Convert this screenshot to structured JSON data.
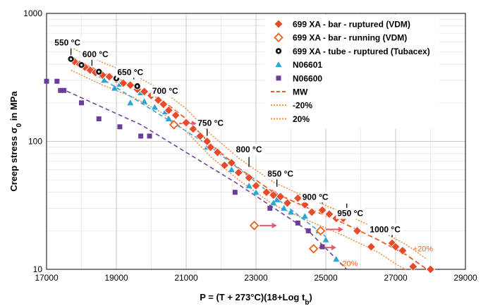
{
  "colors": {
    "bar_ruptured": "#e84a2a",
    "bar_running": "#e8601c",
    "tube": "#111111",
    "n06601": "#2aa5d8",
    "n06600": "#6a3d9a",
    "mw_line": "#e8601c",
    "band_line": "#f07a26",
    "arrow": "#e85a6a",
    "marker_stroke": "#ffffff"
  },
  "chart_data": {
    "type": "scatter",
    "xlabel_main": "P = (T + 273°C)(18+Log t",
    "xlabel_sub": "b",
    "xlabel_end": ")",
    "ylabel_main": "Creep stress σ",
    "ylabel_sub": "0",
    "ylabel_end": " in MPa",
    "xlim": [
      17000,
      29000
    ],
    "ylim": [
      10,
      1000
    ],
    "y_scale": "log",
    "grid": true,
    "legend_position": "top-right",
    "x_ticks": [
      {
        "value": 17000,
        "label": "17000"
      },
      {
        "value": 19000,
        "label": "19000"
      },
      {
        "value": 21000,
        "label": "21000"
      },
      {
        "value": 23000,
        "label": "23000"
      },
      {
        "value": 25000,
        "label": "25000"
      },
      {
        "value": 27000,
        "label": "27000"
      },
      {
        "value": 29000,
        "label": "29000"
      }
    ],
    "y_ticks": [
      {
        "value": 10,
        "label": "10"
      },
      {
        "value": 100,
        "label": "100"
      },
      {
        "value": 1000,
        "label": "1000"
      }
    ],
    "legend": [
      {
        "label": "699 XA - bar - ruptured (VDM)",
        "marker": "diamond"
      },
      {
        "label": "699 XA - bar - running (VDM)",
        "marker": "diamond-open"
      },
      {
        "label": "699 XA - tube - ruptured (Tubacex)",
        "marker": "circle-dot"
      },
      {
        "label": "N06601",
        "marker": "triangle"
      },
      {
        "label": "N06600",
        "marker": "square"
      },
      {
        "label": "MW",
        "marker": "dash"
      },
      {
        "label": "-20%",
        "marker": "dot"
      },
      {
        "label": "20%",
        "marker": "dot"
      }
    ],
    "series": [
      {
        "name": "699 XA - bar - ruptured (VDM)",
        "marker": "diamond",
        "points": [
          [
            17700,
            440
          ],
          [
            17800,
            420
          ],
          [
            17950,
            400
          ],
          [
            18100,
            380
          ],
          [
            18250,
            360
          ],
          [
            18400,
            345
          ],
          [
            18600,
            330
          ],
          [
            18800,
            320
          ],
          [
            19000,
            305
          ],
          [
            19200,
            285
          ],
          [
            19400,
            275
          ],
          [
            19600,
            255
          ],
          [
            19800,
            245
          ],
          [
            20000,
            228
          ],
          [
            20200,
            210
          ],
          [
            20350,
            195
          ],
          [
            20500,
            175
          ],
          [
            20700,
            160
          ],
          [
            21000,
            140
          ],
          [
            21200,
            125
          ],
          [
            21400,
            110
          ],
          [
            21600,
            100
          ],
          [
            21700,
            90
          ],
          [
            21900,
            82
          ],
          [
            22100,
            65
          ],
          [
            22300,
            68
          ],
          [
            22500,
            57
          ],
          [
            22800,
            52
          ],
          [
            23000,
            45
          ],
          [
            23300,
            40
          ],
          [
            23500,
            38
          ],
          [
            23700,
            37
          ],
          [
            23900,
            33
          ],
          [
            24200,
            36
          ],
          [
            24400,
            32
          ],
          [
            24600,
            28
          ],
          [
            24900,
            29
          ],
          [
            25100,
            27
          ],
          [
            25300,
            25
          ],
          [
            25500,
            25
          ],
          [
            25900,
            20
          ],
          [
            26300,
            15
          ],
          [
            26600,
            20
          ],
          [
            26900,
            16
          ],
          [
            27000,
            15
          ],
          [
            27200,
            14
          ],
          [
            27500,
            10.5
          ],
          [
            28000,
            10
          ]
        ]
      },
      {
        "name": "699 XA - bar - running (VDM)",
        "marker": "diamond-open",
        "points": [
          [
            20650,
            135
          ],
          [
            22950,
            22
          ],
          [
            24650,
            14.5
          ],
          [
            24850,
            20
          ]
        ]
      },
      {
        "name": "699 XA - tube - ruptured (Tubacex)",
        "marker": "circle-dot",
        "points": [
          [
            17700,
            440
          ],
          [
            18000,
            395
          ],
          [
            18500,
            350
          ],
          [
            19000,
            310
          ],
          [
            19600,
            270
          ]
        ]
      },
      {
        "name": "N06601",
        "marker": "triangle",
        "points": [
          [
            18650,
            300
          ],
          [
            18950,
            260
          ],
          [
            19100,
            280
          ],
          [
            19400,
            200
          ],
          [
            19700,
            240
          ],
          [
            19800,
            205
          ],
          [
            20100,
            185
          ],
          [
            20400,
            170
          ],
          [
            20500,
            150
          ],
          [
            21600,
            90
          ],
          [
            22300,
            60
          ],
          [
            22800,
            45
          ],
          [
            23000,
            40
          ],
          [
            23500,
            33
          ],
          [
            23600,
            35
          ],
          [
            23800,
            30
          ],
          [
            24000,
            28
          ],
          [
            24400,
            26
          ],
          [
            24800,
            20
          ],
          [
            25000,
            17
          ],
          [
            25300,
            12
          ]
        ]
      },
      {
        "name": "N06600",
        "marker": "square",
        "points": [
          [
            17000,
            295
          ],
          [
            17300,
            295
          ],
          [
            17400,
            250
          ],
          [
            17500,
            250
          ],
          [
            18000,
            200
          ],
          [
            18500,
            150
          ],
          [
            19100,
            130
          ],
          [
            19700,
            110
          ],
          [
            19950,
            110
          ],
          [
            22400,
            40
          ],
          [
            23400,
            30
          ],
          [
            24200,
            23
          ],
          [
            24500,
            20
          ],
          [
            24900,
            15
          ]
        ]
      }
    ],
    "lines": [
      {
        "name": "MW",
        "style": "dashed",
        "points": [
          [
            17700,
            450
          ],
          [
            18600,
            345
          ],
          [
            19500,
            275
          ],
          [
            20300,
            210
          ],
          [
            21000,
            150
          ],
          [
            21700,
            95
          ],
          [
            22500,
            62
          ],
          [
            23500,
            40
          ],
          [
            24500,
            30
          ],
          [
            25500,
            23
          ],
          [
            26500,
            17
          ],
          [
            27300,
            13
          ],
          [
            27900,
            10
          ]
        ]
      },
      {
        "name": "-20%",
        "style": "dotted",
        "points": [
          [
            17700,
            360
          ],
          [
            18600,
            276
          ],
          [
            19500,
            220
          ],
          [
            20300,
            168
          ],
          [
            21000,
            120
          ],
          [
            21700,
            76
          ],
          [
            22500,
            50
          ],
          [
            23500,
            32
          ],
          [
            24500,
            24
          ],
          [
            25500,
            18.4
          ],
          [
            26500,
            13.6
          ],
          [
            27100,
            10.6
          ],
          [
            27300,
            10
          ]
        ]
      },
      {
        "name": "20%",
        "style": "dotted",
        "points": [
          [
            17700,
            540
          ],
          [
            18600,
            414
          ],
          [
            19500,
            330
          ],
          [
            20300,
            252
          ],
          [
            21000,
            180
          ],
          [
            21700,
            114
          ],
          [
            22500,
            74
          ],
          [
            23500,
            48
          ],
          [
            24500,
            36
          ],
          [
            25500,
            27.6
          ],
          [
            26500,
            20.4
          ],
          [
            27300,
            15.6
          ],
          [
            27900,
            12
          ]
        ]
      },
      {
        "name": "N06601 trend",
        "style": "dashed",
        "color": "#2aa5d8",
        "points": [
          [
            18500,
            320
          ],
          [
            21600,
            95
          ],
          [
            25000,
            18
          ]
        ]
      },
      {
        "name": "N06600 trend",
        "style": "dashed",
        "color": "#6a3d9a",
        "points": [
          [
            17400,
            260
          ],
          [
            19700,
            135
          ],
          [
            22400,
            48
          ],
          [
            24500,
            20
          ],
          [
            25600,
            10
          ]
        ]
      }
    ],
    "temperature_labels": [
      {
        "text": "550 °C",
        "x": 17600,
        "y": 560,
        "tick_x": 17700,
        "tick_y": 450
      },
      {
        "text": "600 °C",
        "x": 18400,
        "y": 455,
        "tick_x": 18300,
        "tick_y": 370
      },
      {
        "text": "650 °C",
        "x": 19400,
        "y": 330,
        "tick_x": 19500,
        "tick_y": 290
      },
      {
        "text": "700 °C",
        "x": 20400,
        "y": 235,
        "tick_x": 20300,
        "tick_y": 215
      },
      {
        "text": "750 °C",
        "x": 21700,
        "y": 132,
        "tick_x": 21600,
        "tick_y": 105
      },
      {
        "text": "800 °C",
        "x": 22800,
        "y": 82,
        "tick_x": 22800,
        "tick_y": 60
      },
      {
        "text": "850 °C",
        "x": 23700,
        "y": 53,
        "tick_x": 23600,
        "tick_y": 42
      },
      {
        "text": "900 °C",
        "x": 24700,
        "y": 35,
        "tick_x": 24900,
        "tick_y": 31
      },
      {
        "text": "950 °C",
        "x": 25700,
        "y": 26,
        "tick_x": 25600,
        "tick_y": 26
      },
      {
        "text": "1000 °C",
        "x": 26700,
        "y": 19.5,
        "tick_x": 26900,
        "tick_y": 17
      }
    ],
    "band_labels": [
      {
        "text": "+20%",
        "x": 27500,
        "y": 13.8
      },
      {
        "text": "-20%",
        "x": 25400,
        "y": 10.6
      }
    ],
    "arrows": [
      {
        "x1": 20800,
        "y1": 138,
        "x2": 21300,
        "y2": 138
      },
      {
        "x1": 23100,
        "y1": 22,
        "x2": 23600,
        "y2": 22
      },
      {
        "x1": 23200,
        "y1": 40,
        "x2": 23600,
        "y2": 40
      },
      {
        "x1": 25000,
        "y1": 20.5,
        "x2": 25500,
        "y2": 20.5
      },
      {
        "x1": 24800,
        "y1": 14.8,
        "x2": 25300,
        "y2": 14.8
      }
    ]
  }
}
